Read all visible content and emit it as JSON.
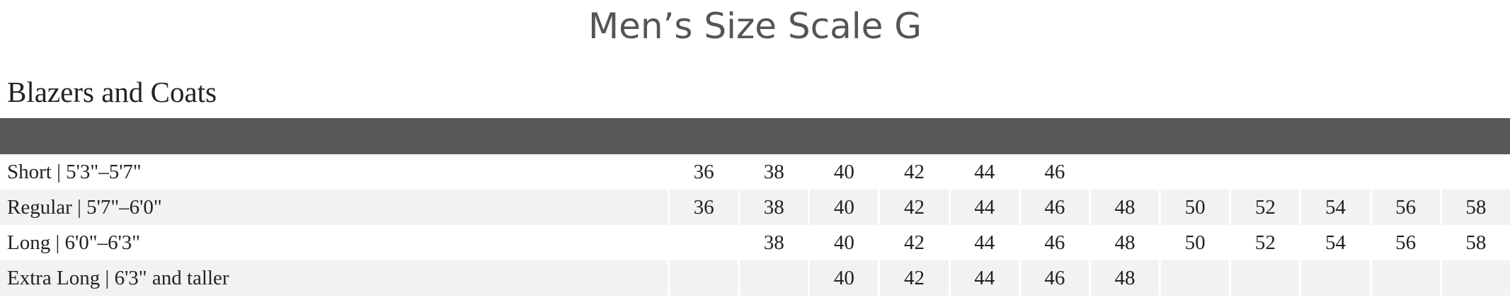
{
  "header": {
    "title": "Men’s Size Scale G",
    "subtitle": "Blazers and Coats"
  },
  "table": {
    "rows": [
      {
        "label": "Short | 5'3\"–5'7\"",
        "cells": [
          36,
          38,
          40,
          42,
          44,
          46,
          null,
          null,
          null,
          null,
          null,
          null
        ]
      },
      {
        "label": "Regular | 5'7\"–6'0\"",
        "cells": [
          36,
          38,
          40,
          42,
          44,
          46,
          48,
          50,
          52,
          54,
          56,
          58
        ]
      },
      {
        "label": "Long | 6'0\"–6'3\"",
        "cells": [
          null,
          38,
          40,
          42,
          44,
          46,
          48,
          50,
          52,
          54,
          56,
          58
        ]
      },
      {
        "label": "Extra Long | 6'3\" and taller",
        "cells": [
          null,
          null,
          40,
          42,
          44,
          46,
          48,
          null,
          null,
          null,
          null,
          null
        ]
      }
    ]
  }
}
